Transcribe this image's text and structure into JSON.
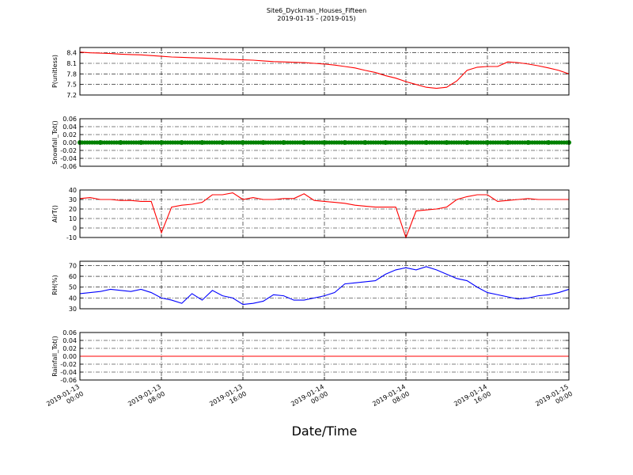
{
  "chart_data": [
    {
      "type": "line",
      "title": "Site6_Dyckman_Houses_Fifteen",
      "subtitle": "2019-01-15 - (2019-015)",
      "ylabel": "P(unitless)",
      "color": "#ff0000",
      "grid": true,
      "xlim": [
        "2019-01-13 00:00",
        "2019-01-15 00:00"
      ],
      "ylim": [
        7.2,
        8.55
      ],
      "yticks": [
        7.2,
        7.5,
        7.8,
        8.1,
        8.4
      ],
      "x": [
        "2019-01-13 00:00",
        "2019-01-13 01:00",
        "2019-01-13 02:00",
        "2019-01-13 03:00",
        "2019-01-13 04:00",
        "2019-01-13 05:00",
        "2019-01-13 06:00",
        "2019-01-13 07:00",
        "2019-01-13 08:00",
        "2019-01-13 09:00",
        "2019-01-13 10:00",
        "2019-01-13 11:00",
        "2019-01-13 12:00",
        "2019-01-13 13:00",
        "2019-01-13 14:00",
        "2019-01-13 15:00",
        "2019-01-13 16:00",
        "2019-01-13 17:00",
        "2019-01-13 18:00",
        "2019-01-13 19:00",
        "2019-01-13 20:00",
        "2019-01-13 21:00",
        "2019-01-13 22:00",
        "2019-01-13 23:00",
        "2019-01-14 00:00",
        "2019-01-14 01:00",
        "2019-01-14 02:00",
        "2019-01-14 03:00",
        "2019-01-14 04:00",
        "2019-01-14 05:00",
        "2019-01-14 06:00",
        "2019-01-14 07:00",
        "2019-01-14 08:00",
        "2019-01-14 09:00",
        "2019-01-14 10:00",
        "2019-01-14 11:00",
        "2019-01-14 12:00",
        "2019-01-14 13:00",
        "2019-01-14 14:00",
        "2019-01-14 15:00",
        "2019-01-14 16:00",
        "2019-01-14 17:00",
        "2019-01-14 18:00",
        "2019-01-14 19:00",
        "2019-01-14 20:00",
        "2019-01-14 21:00",
        "2019-01-14 22:00",
        "2019-01-14 23:00",
        "2019-01-15 00:00"
      ],
      "values": [
        8.42,
        8.4,
        8.39,
        8.38,
        8.36,
        8.35,
        8.34,
        8.32,
        8.3,
        8.28,
        8.27,
        8.26,
        8.25,
        8.24,
        8.22,
        8.21,
        8.2,
        8.19,
        8.17,
        8.15,
        8.14,
        8.13,
        8.12,
        8.1,
        8.08,
        8.05,
        8.01,
        7.97,
        7.9,
        7.84,
        7.75,
        7.68,
        7.58,
        7.5,
        7.42,
        7.39,
        7.42,
        7.6,
        7.9,
        7.99,
        8.01,
        8.01,
        8.14,
        8.12,
        8.08,
        8.03,
        7.97,
        7.9,
        7.8
      ]
    },
    {
      "type": "scatter",
      "ylabel": "Snowfall_Tot()",
      "color": "#008000",
      "grid": true,
      "xlim": [
        "2019-01-13 00:00",
        "2019-01-15 00:00"
      ],
      "ylim": [
        -0.06,
        0.06
      ],
      "yticks": [
        -0.06,
        -0.04,
        -0.02,
        {
          "value": 0,
          "label": "0.00"
        },
        0.02,
        0.04,
        0.06
      ],
      "x": [
        "2019-01-13 00:00",
        "2019-01-13 02:00",
        "2019-01-13 04:00",
        "2019-01-13 06:00",
        "2019-01-13 08:00",
        "2019-01-13 10:00",
        "2019-01-13 12:00",
        "2019-01-13 14:00",
        "2019-01-13 16:00",
        "2019-01-13 18:00",
        "2019-01-13 20:00",
        "2019-01-13 22:00",
        "2019-01-14 00:00",
        "2019-01-14 02:00",
        "2019-01-14 04:00",
        "2019-01-14 06:00",
        "2019-01-14 08:00",
        "2019-01-14 10:00",
        "2019-01-14 12:00",
        "2019-01-14 14:00",
        "2019-01-14 16:00",
        "2019-01-14 18:00",
        "2019-01-14 20:00",
        "2019-01-14 22:00",
        "2019-01-15 00:00"
      ],
      "values": [
        0,
        0,
        0,
        0,
        0,
        0,
        0,
        0,
        0,
        0,
        0,
        0,
        0,
        0,
        0,
        0,
        0,
        0,
        0,
        0,
        0,
        0,
        0,
        0,
        0
      ]
    },
    {
      "type": "line",
      "ylabel": "AirT()",
      "color": "#ff0000",
      "grid": true,
      "xlim": [
        "2019-01-13 00:00",
        "2019-01-15 00:00"
      ],
      "ylim": [
        -10,
        40
      ],
      "yticks": [
        -10,
        0,
        10,
        20,
        30,
        40
      ],
      "x": [
        "2019-01-13 00:00",
        "2019-01-13 01:00",
        "2019-01-13 02:00",
        "2019-01-13 03:00",
        "2019-01-13 04:00",
        "2019-01-13 05:00",
        "2019-01-13 06:00",
        "2019-01-13 07:00",
        "2019-01-13 08:00",
        "2019-01-13 09:00",
        "2019-01-13 10:00",
        "2019-01-13 11:00",
        "2019-01-13 12:00",
        "2019-01-13 13:00",
        "2019-01-13 14:00",
        "2019-01-13 15:00",
        "2019-01-13 16:00",
        "2019-01-13 17:00",
        "2019-01-13 18:00",
        "2019-01-13 19:00",
        "2019-01-13 20:00",
        "2019-01-13 21:00",
        "2019-01-13 22:00",
        "2019-01-13 23:00",
        "2019-01-14 00:00",
        "2019-01-14 01:00",
        "2019-01-14 02:00",
        "2019-01-14 03:00",
        "2019-01-14 04:00",
        "2019-01-14 05:00",
        "2019-01-14 06:00",
        "2019-01-14 07:00",
        "2019-01-14 08:00",
        "2019-01-14 09:00",
        "2019-01-14 10:00",
        "2019-01-14 11:00",
        "2019-01-14 12:00",
        "2019-01-14 13:00",
        "2019-01-14 14:00",
        "2019-01-14 15:00",
        "2019-01-14 16:00",
        "2019-01-14 17:00",
        "2019-01-14 18:00",
        "2019-01-14 19:00",
        "2019-01-14 20:00",
        "2019-01-14 21:00",
        "2019-01-14 22:00",
        "2019-01-14 23:00",
        "2019-01-15 00:00"
      ],
      "values": [
        31,
        32,
        30,
        30,
        29,
        29,
        28,
        28,
        -5,
        22,
        24,
        25,
        27,
        35,
        35,
        37,
        30,
        32,
        30,
        30,
        31,
        31,
        36,
        29,
        28,
        27,
        26,
        24,
        23,
        22,
        22,
        22,
        -10,
        18,
        19,
        20,
        22,
        30,
        33,
        35,
        35,
        28,
        29,
        30,
        31,
        30,
        30,
        30,
        30
      ]
    },
    {
      "type": "line",
      "ylabel": "RH(%)",
      "color": "#0000ff",
      "grid": true,
      "xlim": [
        "2019-01-13 00:00",
        "2019-01-15 00:00"
      ],
      "ylim": [
        30,
        74
      ],
      "yticks": [
        30,
        40,
        50,
        60,
        70
      ],
      "x": [
        "2019-01-13 00:00",
        "2019-01-13 01:00",
        "2019-01-13 02:00",
        "2019-01-13 03:00",
        "2019-01-13 04:00",
        "2019-01-13 05:00",
        "2019-01-13 06:00",
        "2019-01-13 07:00",
        "2019-01-13 08:00",
        "2019-01-13 09:00",
        "2019-01-13 10:00",
        "2019-01-13 11:00",
        "2019-01-13 12:00",
        "2019-01-13 13:00",
        "2019-01-13 14:00",
        "2019-01-13 15:00",
        "2019-01-13 16:00",
        "2019-01-13 17:00",
        "2019-01-13 18:00",
        "2019-01-13 19:00",
        "2019-01-13 20:00",
        "2019-01-13 21:00",
        "2019-01-13 22:00",
        "2019-01-13 23:00",
        "2019-01-14 00:00",
        "2019-01-14 01:00",
        "2019-01-14 02:00",
        "2019-01-14 03:00",
        "2019-01-14 04:00",
        "2019-01-14 05:00",
        "2019-01-14 06:00",
        "2019-01-14 07:00",
        "2019-01-14 08:00",
        "2019-01-14 09:00",
        "2019-01-14 10:00",
        "2019-01-14 11:00",
        "2019-01-14 12:00",
        "2019-01-14 13:00",
        "2019-01-14 14:00",
        "2019-01-14 15:00",
        "2019-01-14 16:00",
        "2019-01-14 17:00",
        "2019-01-14 18:00",
        "2019-01-14 19:00",
        "2019-01-14 20:00",
        "2019-01-14 21:00",
        "2019-01-14 22:00",
        "2019-01-14 23:00",
        "2019-01-15 00:00"
      ],
      "values": [
        44,
        45,
        46,
        48,
        47,
        46,
        48,
        45,
        40,
        38,
        35,
        44,
        38,
        47,
        42,
        40,
        34,
        35,
        37,
        43,
        42,
        38,
        38,
        40,
        42,
        45,
        53,
        54,
        55,
        56,
        62,
        66,
        68,
        66,
        69,
        66,
        62,
        58,
        56,
        50,
        45,
        43,
        41,
        39,
        40,
        42,
        43,
        45,
        48
      ]
    },
    {
      "type": "line",
      "ylabel": "Rainfall_Tot()",
      "xlabel": "Date/Time",
      "color": "#ff0000",
      "grid": true,
      "xlim": [
        "2019-01-13 00:00",
        "2019-01-15 00:00"
      ],
      "ylim": [
        -0.06,
        0.06
      ],
      "yticks": [
        -0.06,
        -0.04,
        -0.02,
        {
          "value": 0,
          "label": "0.00"
        },
        0.02,
        0.04,
        0.06
      ],
      "xticks": [
        "2019-01-13 00:00",
        "2019-01-13 08:00",
        "2019-01-13 16:00",
        "2019-01-14 00:00",
        "2019-01-14 08:00",
        "2019-01-14 16:00",
        "2019-01-15 00:00"
      ],
      "x": [
        "2019-01-13 00:00",
        "2019-01-13 02:00",
        "2019-01-13 04:00",
        "2019-01-13 06:00",
        "2019-01-13 08:00",
        "2019-01-13 10:00",
        "2019-01-13 12:00",
        "2019-01-13 14:00",
        "2019-01-13 16:00",
        "2019-01-13 18:00",
        "2019-01-13 20:00",
        "2019-01-13 22:00",
        "2019-01-14 00:00",
        "2019-01-14 02:00",
        "2019-01-14 04:00",
        "2019-01-14 06:00",
        "2019-01-14 08:00",
        "2019-01-14 10:00",
        "2019-01-14 12:00",
        "2019-01-14 14:00",
        "2019-01-14 16:00",
        "2019-01-14 18:00",
        "2019-01-14 20:00",
        "2019-01-14 22:00",
        "2019-01-15 00:00"
      ],
      "values": [
        0,
        0,
        0,
        0,
        0,
        0,
        0,
        0,
        0,
        0,
        0,
        0,
        0,
        0,
        0,
        0,
        0,
        0,
        0,
        0,
        0,
        0,
        0,
        0,
        0
      ]
    }
  ]
}
